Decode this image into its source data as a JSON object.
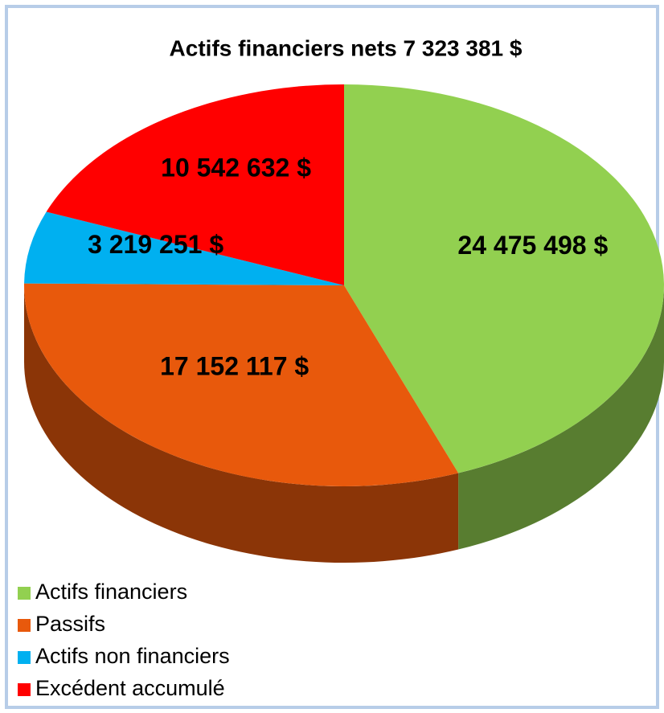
{
  "chart_data": {
    "type": "pie",
    "title": "Actifs financiers nets 7 323 381 $",
    "categories": [
      "Actifs financiers",
      "Passifs",
      "Actifs non financiers",
      "Excédent accumulé"
    ],
    "values": [
      24475498,
      17152117,
      3219251,
      10542632
    ],
    "value_labels": [
      "24 475 498 $",
      "17 152 117 $",
      "3 219 251 $",
      "10 542 632 $"
    ],
    "colors": [
      "#92d050",
      "#e8590c",
      "#00b0f0",
      "#ff0000"
    ]
  }
}
